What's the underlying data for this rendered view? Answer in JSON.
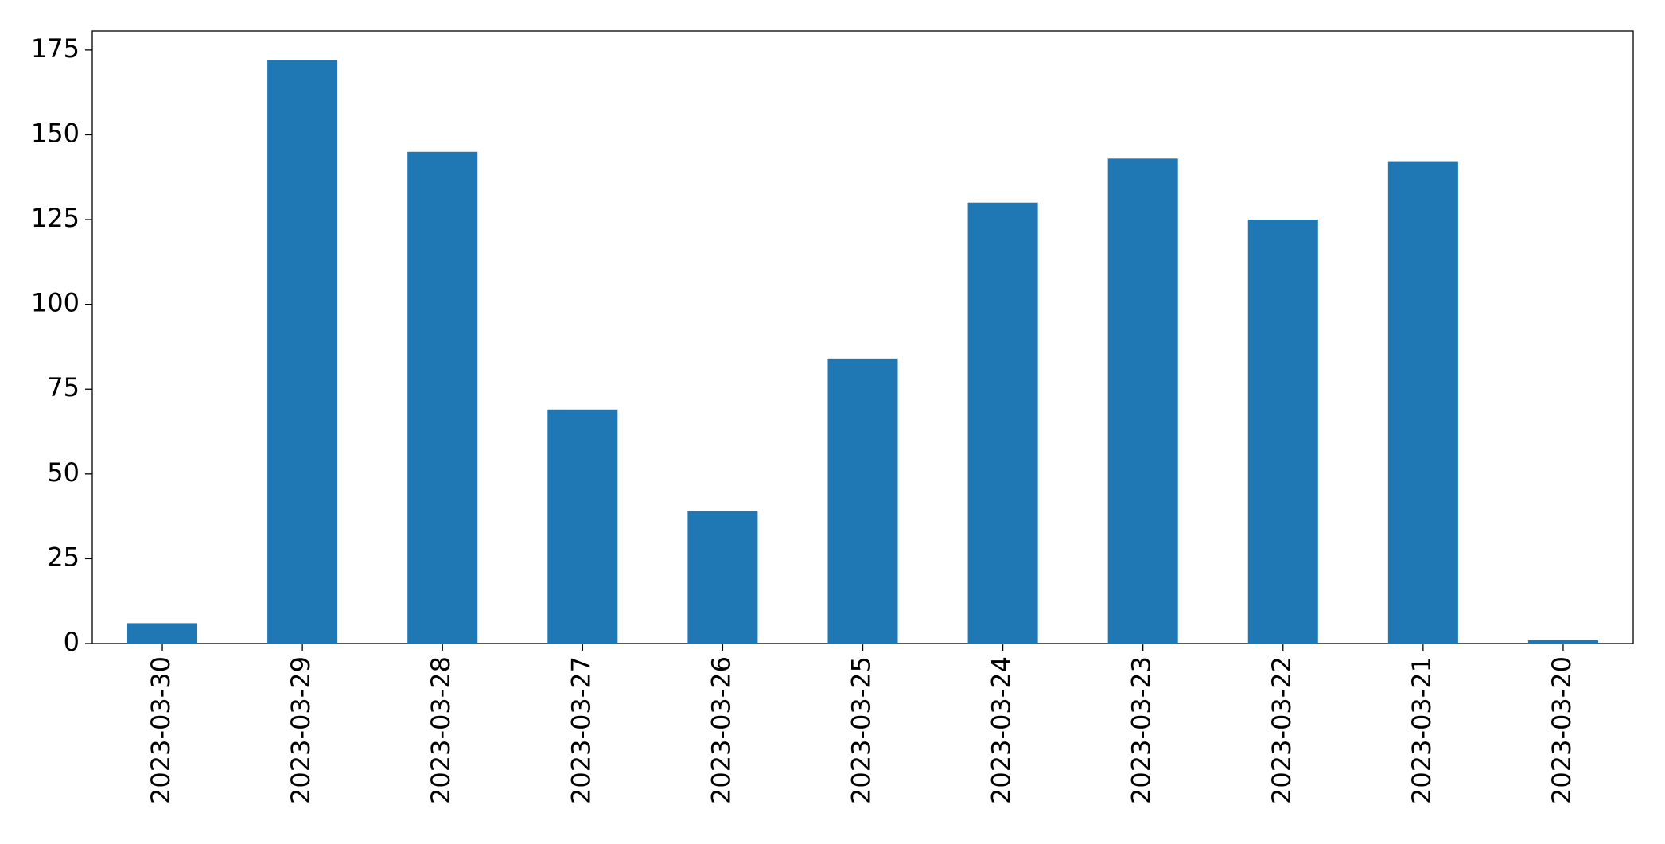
{
  "chart_data": {
    "type": "bar",
    "categories": [
      "2023-03-30",
      "2023-03-29",
      "2023-03-28",
      "2023-03-27",
      "2023-03-26",
      "2023-03-25",
      "2023-03-24",
      "2023-03-23",
      "2023-03-22",
      "2023-03-21",
      "2023-03-20"
    ],
    "values": [
      6,
      172,
      145,
      69,
      39,
      84,
      130,
      143,
      125,
      142,
      1
    ],
    "color": "#1f77b4",
    "ylim": [
      0,
      180.6
    ],
    "yticks": [
      0,
      25,
      50,
      75,
      100,
      125,
      150,
      175
    ],
    "grid": false
  }
}
